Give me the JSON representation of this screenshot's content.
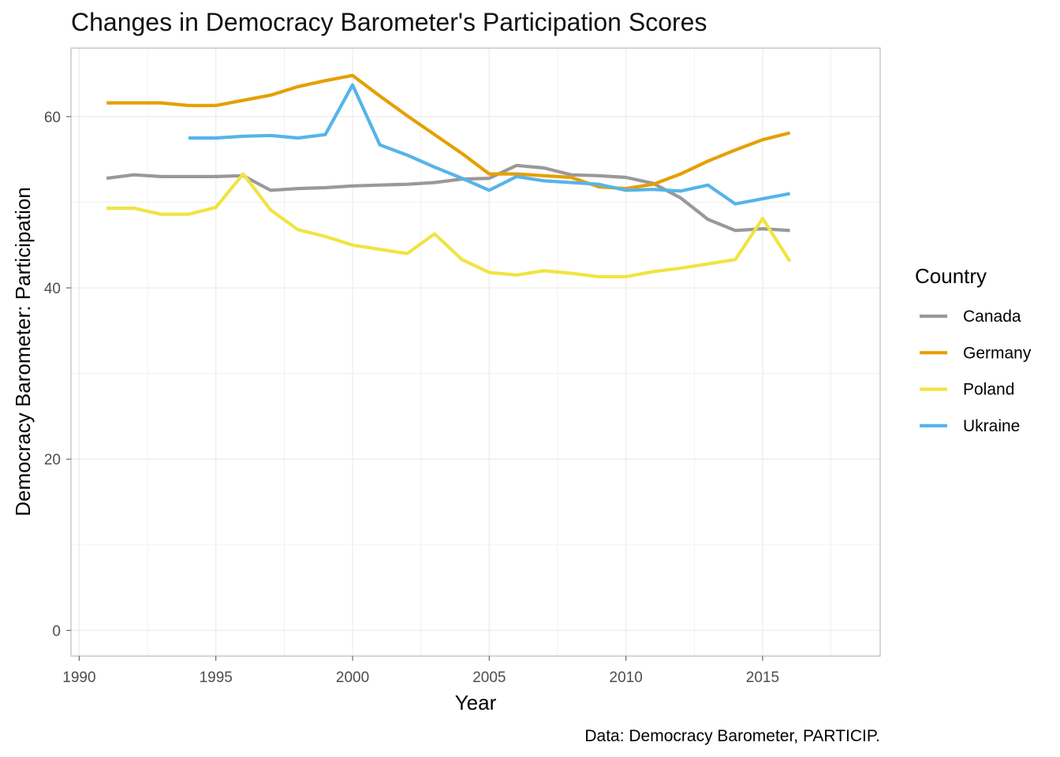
{
  "chart_data": {
    "type": "line",
    "title": "Changes in Democracy Barometer's Participation Scores",
    "xlabel": "Year",
    "ylabel": "Democracy Barometer: Participation",
    "caption": "Data: Democracy Barometer, PARTICIP.",
    "xlim": [
      1989.7,
      2019.3
    ],
    "ylim": [
      -3,
      68
    ],
    "x_ticks": [
      1990,
      1995,
      2000,
      2005,
      2010,
      2015
    ],
    "y_ticks": [
      0,
      20,
      40,
      60
    ],
    "grid": true,
    "legend": {
      "title": "Country",
      "position": "right"
    },
    "series": [
      {
        "name": "Canada",
        "color": "#999999",
        "x": [
          1991,
          1992,
          1993,
          1994,
          1995,
          1996,
          1997,
          1998,
          1999,
          2000,
          2001,
          2002,
          2003,
          2004,
          2005,
          2006,
          2007,
          2008,
          2009,
          2010,
          2011,
          2012,
          2013,
          2014,
          2015,
          2016
        ],
        "y": [
          52.8,
          53.2,
          53.0,
          53.0,
          53.0,
          53.1,
          51.4,
          51.6,
          51.7,
          51.9,
          52.0,
          52.1,
          52.3,
          52.7,
          52.8,
          54.3,
          54.0,
          53.2,
          53.1,
          52.9,
          52.2,
          50.5,
          48.0,
          46.7,
          46.9,
          46.7
        ]
      },
      {
        "name": "Germany",
        "color": "#E69F00",
        "x": [
          1991,
          1992,
          1993,
          1994,
          1995,
          1996,
          1997,
          1998,
          1999,
          2000,
          2001,
          2002,
          2003,
          2004,
          2005,
          2006,
          2007,
          2008,
          2009,
          2010,
          2011,
          2012,
          2013,
          2014,
          2015,
          2016
        ],
        "y": [
          61.6,
          61.6,
          61.6,
          61.3,
          61.3,
          61.9,
          62.5,
          63.5,
          64.2,
          64.8,
          62.4,
          60.1,
          57.9,
          55.7,
          53.3,
          53.3,
          53.1,
          52.9,
          51.8,
          51.6,
          52.1,
          53.3,
          54.8,
          56.1,
          57.3,
          58.1
        ]
      },
      {
        "name": "Poland",
        "color": "#F0E442",
        "x": [
          1991,
          1992,
          1993,
          1994,
          1995,
          1996,
          1997,
          1998,
          1999,
          2000,
          2001,
          2002,
          2003,
          2004,
          2005,
          2006,
          2007,
          2008,
          2009,
          2010,
          2011,
          2012,
          2013,
          2014,
          2015,
          2016
        ],
        "y": [
          49.3,
          49.3,
          48.6,
          48.6,
          49.4,
          53.3,
          49.1,
          46.8,
          46.0,
          45.0,
          44.5,
          44.0,
          46.3,
          43.3,
          41.8,
          41.5,
          42.0,
          41.7,
          41.3,
          41.3,
          41.9,
          42.3,
          42.8,
          43.3,
          48.1,
          43.1
        ]
      },
      {
        "name": "Ukraine",
        "color": "#56B4E9",
        "x": [
          1994,
          1995,
          1996,
          1997,
          1998,
          1999,
          2000,
          2001,
          2002,
          2003,
          2004,
          2005,
          2006,
          2007,
          2008,
          2009,
          2010,
          2011,
          2012,
          2013,
          2014,
          2015,
          2016
        ],
        "y": [
          57.5,
          57.5,
          57.7,
          57.8,
          57.5,
          57.9,
          63.7,
          56.7,
          55.5,
          54.1,
          52.8,
          51.4,
          53.0,
          52.5,
          52.3,
          52.1,
          51.4,
          51.5,
          51.3,
          52.0,
          49.8,
          50.4,
          51.0
        ]
      }
    ]
  }
}
